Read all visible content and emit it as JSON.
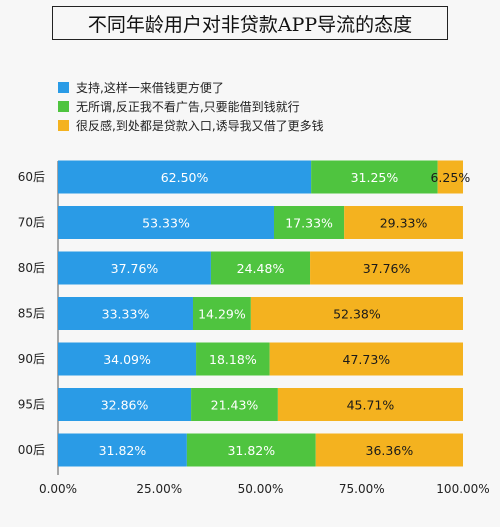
{
  "chart_data": {
    "type": "bar",
    "stacked": true,
    "orientation": "horizontal",
    "title": "不同年龄用户对非贷款APP导流的态度",
    "categories": [
      "60后",
      "70后",
      "80后",
      "85后",
      "90后",
      "95后",
      "00后"
    ],
    "series": [
      {
        "name": "支持,这样一来借钱更方便了",
        "color": "#2a9be6",
        "label_color": "#ffffff",
        "values": [
          62.5,
          53.33,
          37.76,
          33.33,
          34.09,
          32.86,
          31.82
        ],
        "labels": [
          "62.50%",
          "53.33%",
          "37.76%",
          "33.33%",
          "34.09%",
          "32.86%",
          "31.82%"
        ]
      },
      {
        "name": "无所谓,反正我不看广告,只要能借到钱就行",
        "color": "#4fc43f",
        "label_color": "#ffffff",
        "values": [
          31.25,
          17.33,
          24.48,
          14.29,
          18.18,
          21.43,
          31.82
        ],
        "labels": [
          "31.25%",
          "17.33%",
          "24.48%",
          "14.29%",
          "18.18%",
          "21.43%",
          "31.82%"
        ]
      },
      {
        "name": "很反感,到处都是贷款入口,诱导我又借了更多钱",
        "color": "#f4b21f",
        "label_color": "#1a1a1a",
        "values": [
          6.25,
          29.33,
          37.76,
          52.38,
          47.73,
          45.71,
          36.36
        ],
        "labels": [
          "6.25%",
          "29.33%",
          "37.76%",
          "52.38%",
          "47.73%",
          "45.71%",
          "36.36%"
        ]
      }
    ],
    "xlim": [
      0,
      100
    ],
    "x_ticks": [
      "0.00%",
      "25.00%",
      "50.00%",
      "75.00%",
      "100.00%"
    ],
    "legend_position": "top-left"
  }
}
